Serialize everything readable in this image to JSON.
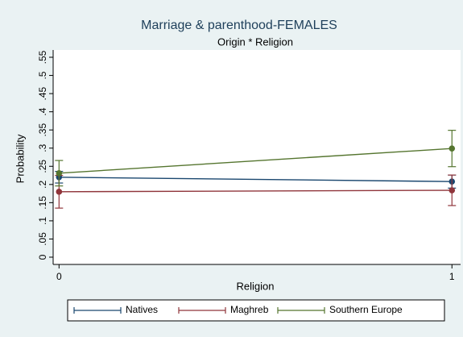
{
  "chart_data": {
    "type": "line",
    "title": "Marriage & parenthood-FEMALES",
    "subtitle": "Origin * Religion",
    "x_label": "Religion",
    "y_label": "Probability",
    "x": [
      0,
      1
    ],
    "xlim": [
      -0.015,
      1.022
    ],
    "xticks": [
      0,
      1
    ],
    "ylim": [
      -0.02,
      0.57
    ],
    "yticks": [
      0,
      {
        "value": 0.05,
        "label": ".05"
      },
      {
        "value": 0.1,
        "label": ".1"
      },
      {
        "value": 0.15,
        "label": ".15"
      },
      {
        "value": 0.2,
        "label": ".2"
      },
      {
        "value": 0.25,
        "label": ".25"
      },
      {
        "value": 0.3,
        "label": ".3"
      },
      {
        "value": 0.35,
        "label": ".35"
      },
      {
        "value": 0.4,
        "label": ".4"
      },
      {
        "value": 0.45,
        "label": ".45"
      },
      {
        "value": 0.5,
        "label": ".5"
      },
      {
        "value": 0.55,
        "label": ".55"
      }
    ],
    "series": [
      {
        "name": "Natives",
        "color": "#1a476f",
        "values": [
          0.22,
          0.208
        ],
        "errors": [
          0.016,
          0.018
        ]
      },
      {
        "name": "Maghreb",
        "color": "#90353b",
        "values": [
          0.18,
          0.184
        ],
        "errors": [
          0.045,
          0.042
        ]
      },
      {
        "name": "Southern Europe",
        "color": "#55752f",
        "values": [
          0.231,
          0.299
        ],
        "errors": [
          0.035,
          0.05
        ]
      }
    ]
  }
}
